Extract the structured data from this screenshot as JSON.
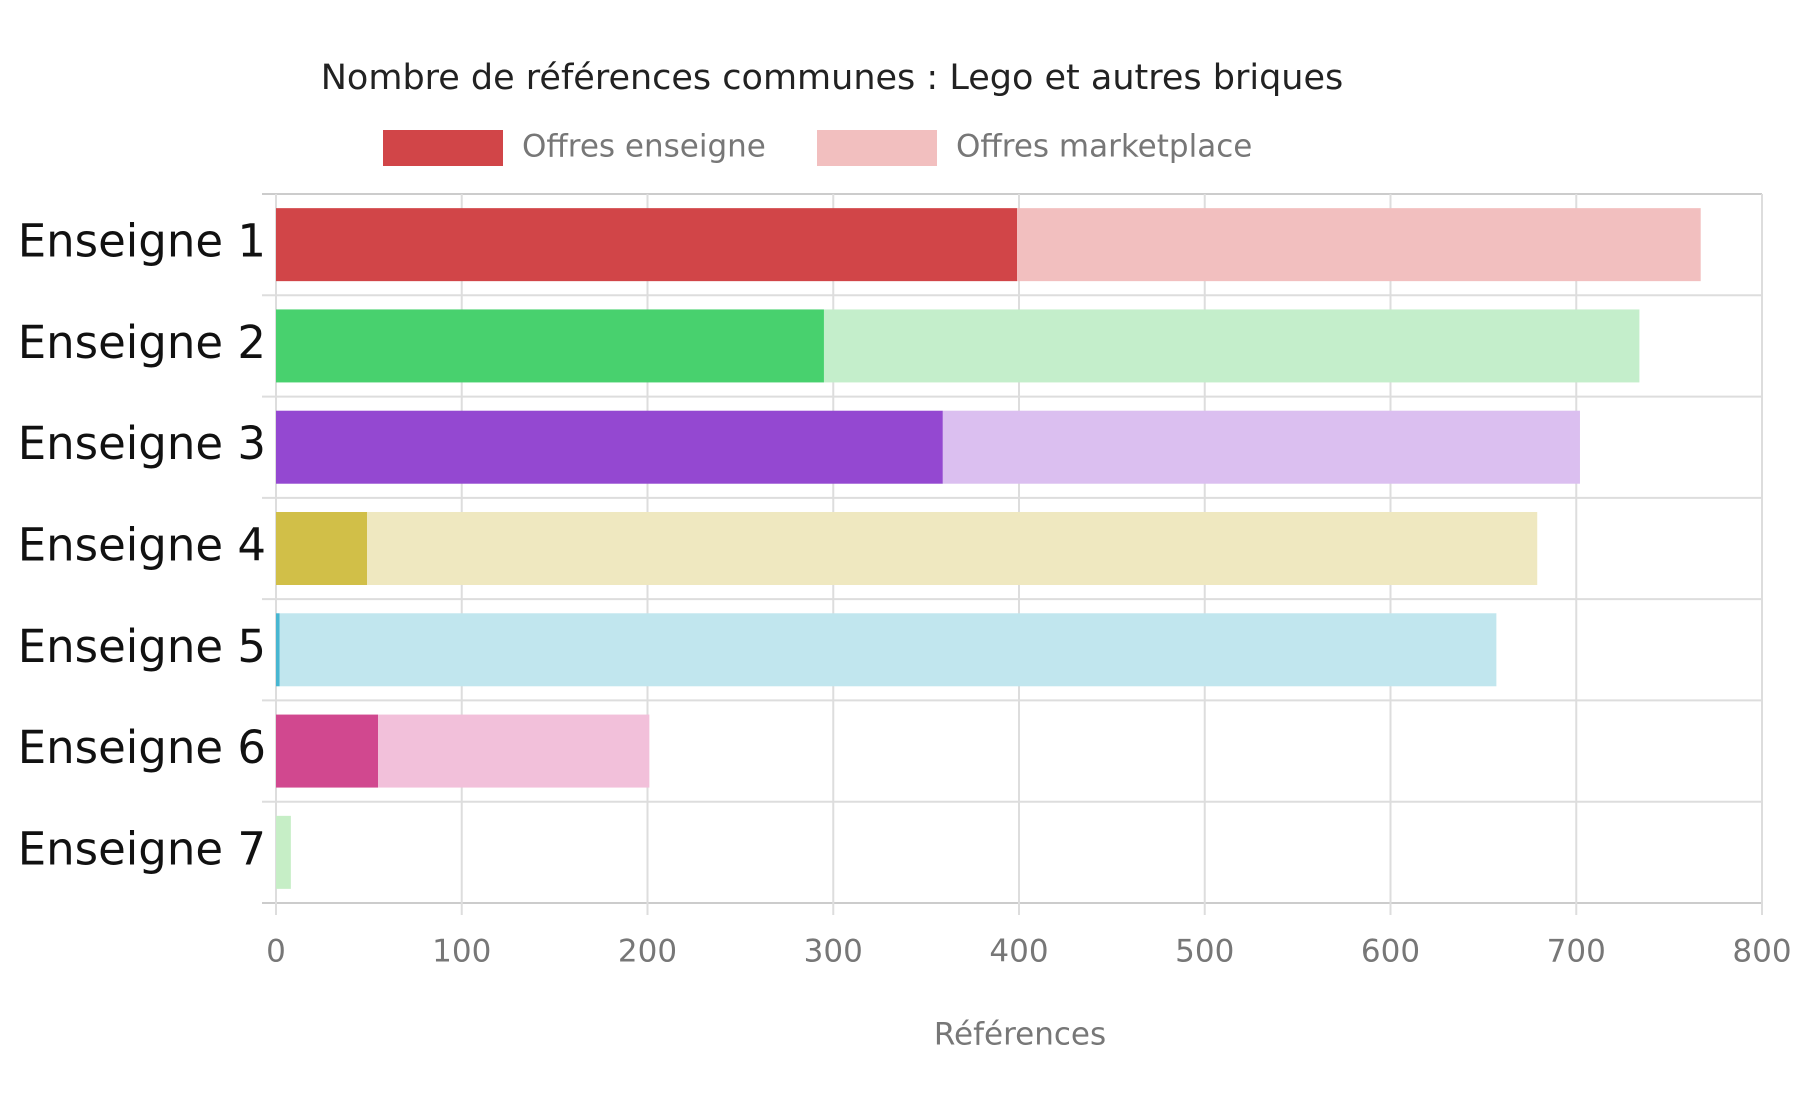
{
  "chart_data": {
    "type": "bar",
    "orientation": "horizontal",
    "stacked": true,
    "title": "Nombre de références communes : Lego et autres briques",
    "xlabel": "Références",
    "categories": [
      "Enseigne 1",
      "Enseigne 2",
      "Enseigne 3",
      "Enseigne 4",
      "Enseigne 5",
      "Enseigne 6",
      "Enseigne 7"
    ],
    "series": [
      {
        "name": "Offres enseigne",
        "color": "#d14548",
        "colors": [
          "#d14548",
          "#48d16e",
          "#9448d1",
          "#d1bf48",
          "#48b6d1",
          "#d1488f",
          "#6ed16e"
        ],
        "values": [
          399,
          295,
          359,
          49,
          2,
          55,
          0
        ]
      },
      {
        "name": "Offres marketplace",
        "color": "#f2bfbf",
        "colors": [
          "#f2bfbf",
          "#c4eecb",
          "#dbbff0",
          "#efe8c0",
          "#c1e6ee",
          "#f2c0da",
          "#c6eec6"
        ],
        "values": [
          368,
          439,
          343,
          630,
          655,
          146,
          8
        ]
      }
    ],
    "xlim": [
      0,
      800
    ],
    "xticks": [
      0,
      100,
      200,
      300,
      400,
      500,
      600,
      700,
      800
    ],
    "grid": true,
    "legend": "top"
  }
}
